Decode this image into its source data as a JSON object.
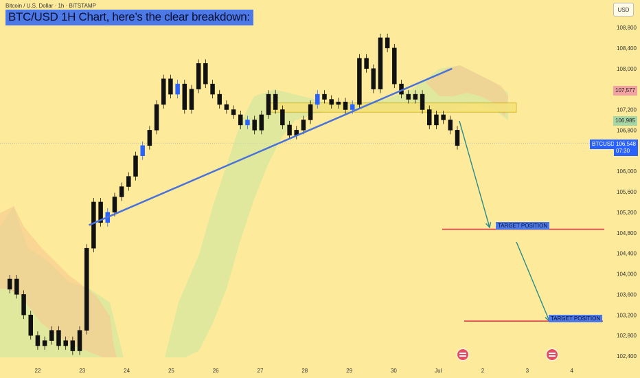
{
  "header": {
    "symbol_line": "Bitcoin / U.S. Dollar · 1h · BITSTAMP",
    "headline": "BTC/USD 1H Chart, here’s the clear breakdown:",
    "currency_button": "USD"
  },
  "price_scale": {
    "ticks": [
      "108,800",
      "108,400",
      "108,000",
      "107,600",
      "107,200",
      "106,800",
      "106,400",
      "106,000",
      "105,600",
      "105,200",
      "104,800",
      "104,400",
      "104,000",
      "103,600",
      "103,200",
      "102,800",
      "102,400"
    ],
    "tag_red": "107,577",
    "tag_green": "106,985",
    "symbol_badge": "BTCUSD",
    "current_price": "106,548",
    "countdown": "07:30"
  },
  "time_axis": {
    "labels": [
      "22",
      "23",
      "24",
      "25",
      "26",
      "27",
      "28",
      "29",
      "30",
      "Jul",
      "2",
      "3",
      "4"
    ]
  },
  "annotations": {
    "target_1": "TARGET POSITION",
    "target_2": "TARGET POSITION"
  },
  "colors": {
    "background": "#fdeb9b",
    "candle": "#111111",
    "candle_up": "#2962ff",
    "trendline": "#4a72d9",
    "target_line": "#e03a4a",
    "arrow": "#2a8a8a",
    "cloud_green": "#c8e6a0",
    "cloud_orange": "#f8c890",
    "resistance_box": "#f6e27a"
  },
  "chart_data": {
    "type": "candlestick",
    "title": "",
    "symbol": "BTCUSD",
    "timeframe": "1h",
    "exchange": "BITSTAMP",
    "ylim": [
      102400,
      108900
    ],
    "x_labels": [
      "22",
      "23",
      "24",
      "25",
      "26",
      "27",
      "28",
      "29",
      "30",
      "Jul",
      "2",
      "3",
      "4"
    ],
    "current_price": 106548,
    "marked_levels": [
      107577,
      106985
    ],
    "resistance_zone": [
      107150,
      107330
    ],
    "trendline": {
      "start": [
        "24",
        104950
      ],
      "end": [
        "30",
        108000
      ]
    },
    "targets": [
      {
        "label": "TARGET POSITION",
        "price": 104870
      },
      {
        "label": "TARGET POSITION",
        "price": 103080
      }
    ],
    "price_path": [
      103700,
      103900,
      103600,
      103200,
      102800,
      102600,
      102700,
      102900,
      102600,
      102700,
      102500,
      102900,
      104500,
      105400,
      105000,
      105200,
      105500,
      105700,
      105900,
      106300,
      106500,
      106800,
      107300,
      107800,
      107500,
      107700,
      107200,
      107600,
      108100,
      107700,
      107500,
      107300,
      107200,
      107100,
      106900,
      107000,
      106800,
      107100,
      107500,
      107200,
      106900,
      106700,
      106800,
      107000,
      107300,
      107500,
      107400,
      107300,
      107350,
      107200,
      107300,
      108200,
      108000,
      107600,
      108600,
      108400,
      107700,
      107500,
      107400,
      107500,
      107200,
      106900,
      107100,
      107000,
      106800,
      106500
    ]
  }
}
